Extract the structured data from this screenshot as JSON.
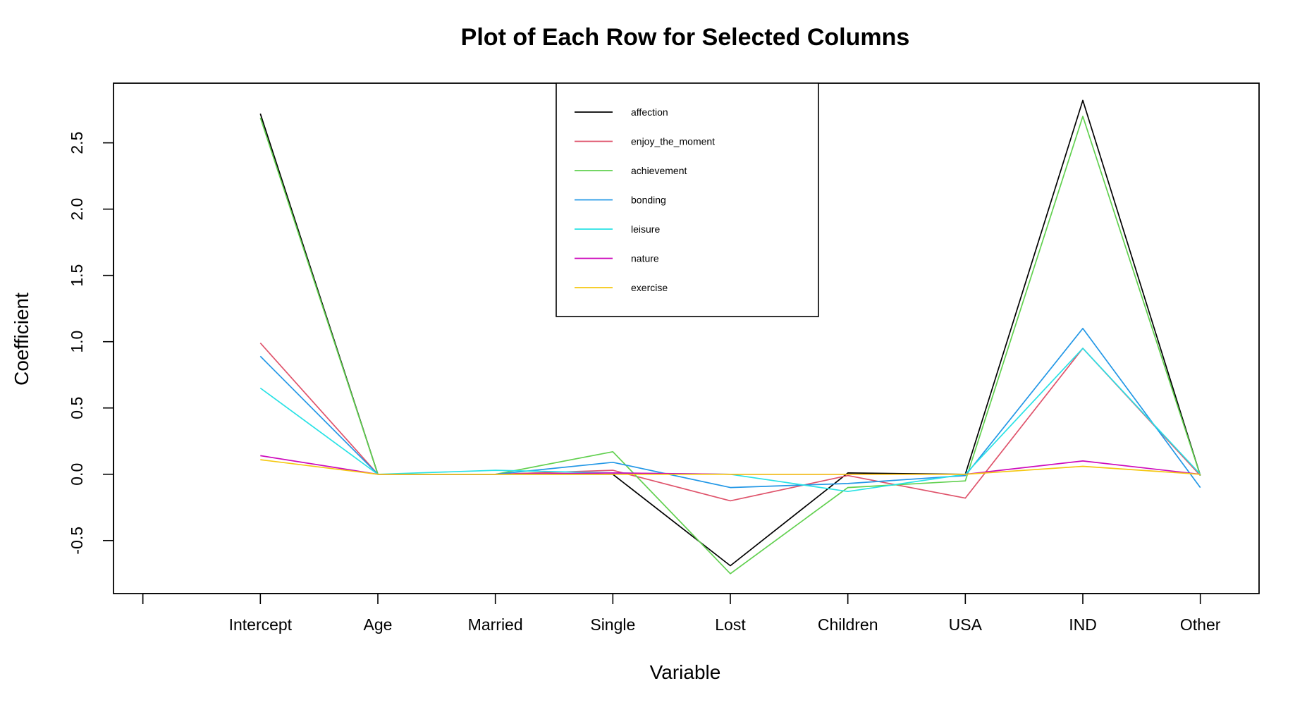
{
  "chart_data": {
    "type": "line",
    "title": "Plot of Each Row for Selected Columns",
    "xlabel": "Variable",
    "ylabel": "Coefficient",
    "categories": [
      "Intercept",
      "Age",
      "Married",
      "Single",
      "Lost",
      "Children",
      "USA",
      "IND",
      "Other"
    ],
    "x_tick_positions": [
      1,
      2,
      3,
      4,
      5,
      6,
      7,
      8,
      9,
      10
    ],
    "x_tick_labels": [
      "",
      "Intercept",
      "Age",
      "Married",
      "Single",
      "Lost",
      "Children",
      "USA",
      "IND",
      "Other"
    ],
    "xlim": [
      0.75,
      10.5
    ],
    "ylim": [
      -0.9,
      2.95
    ],
    "y_ticks": [
      -0.5,
      0.0,
      0.5,
      1.0,
      1.5,
      2.0,
      2.5
    ],
    "y_tick_labels": [
      "-0.5",
      "0.0",
      "0.5",
      "1.0",
      "1.5",
      "2.0",
      "2.5"
    ],
    "legend_position": "top-center",
    "grid": false,
    "series": [
      {
        "name": "affection",
        "color": "#000000",
        "values": [
          2.72,
          0.0,
          0.0,
          0.0,
          -0.69,
          0.01,
          0.0,
          2.82,
          -0.01
        ]
      },
      {
        "name": "enjoy_the_moment",
        "color": "#DF536B",
        "values": [
          0.99,
          0.0,
          0.0,
          0.03,
          -0.2,
          -0.01,
          -0.18,
          0.95,
          -0.01
        ]
      },
      {
        "name": "achievement",
        "color": "#61D04F",
        "values": [
          2.69,
          0.0,
          0.0,
          0.17,
          -0.75,
          -0.1,
          -0.05,
          2.7,
          -0.01
        ]
      },
      {
        "name": "bonding",
        "color": "#2297E6",
        "values": [
          0.89,
          0.0,
          0.0,
          0.09,
          -0.1,
          -0.07,
          -0.01,
          1.1,
          -0.1
        ]
      },
      {
        "name": "leisure",
        "color": "#28E2E5",
        "values": [
          0.65,
          0.0,
          0.03,
          0.01,
          -0.0,
          -0.13,
          0.0,
          0.95,
          0.0
        ]
      },
      {
        "name": "nature",
        "color": "#CD0BBC",
        "values": [
          0.14,
          0.0,
          0.0,
          0.01,
          0.0,
          0.0,
          0.0,
          0.1,
          0.0
        ]
      },
      {
        "name": "exercise",
        "color": "#F5C710",
        "values": [
          0.11,
          0.0,
          0.0,
          0.0,
          0.0,
          0.0,
          0.0,
          0.06,
          0.0
        ]
      }
    ]
  }
}
